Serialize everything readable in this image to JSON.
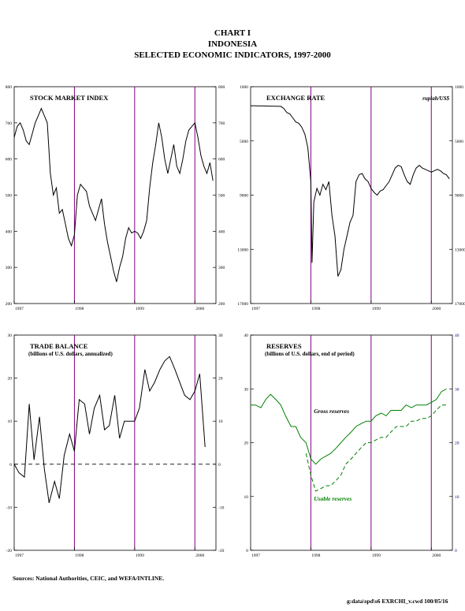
{
  "header": {
    "line1": "CHART I",
    "line2": "INDONESIA",
    "line3": "SELECTED ECONOMIC INDICATORS, 1997-2000"
  },
  "footer": {
    "sources": "Sources: National Authorities, CEIC, and WEFA/INTLINE.",
    "file_ref": "g:data\\spd\\s6 EXRCHI_v.cwd 100/05/16"
  },
  "colors": {
    "axes": "#000000",
    "year_lines": "#800080",
    "reserves": "#008000",
    "right_axis_reserves": "#000080"
  },
  "chart_data": [
    {
      "id": "stock",
      "type": "line",
      "title": "STOCK MARKET INDEX",
      "subtitle": "",
      "unit_label": "",
      "x_tick_labels": [
        "1997",
        "1998",
        "1999",
        "2000"
      ],
      "xlim": [
        1997.0,
        2000.35
      ],
      "ylim": [
        200,
        800
      ],
      "y_ticks": [
        200,
        300,
        400,
        500,
        600,
        700,
        800
      ],
      "y_reversed": false,
      "year_lines": [
        1998,
        1999,
        2000
      ],
      "series": [
        {
          "name": "",
          "style": "solid",
          "color": "#000000",
          "points": [
            [
              1997.0,
              660
            ],
            [
              1997.05,
              690
            ],
            [
              1997.1,
              700
            ],
            [
              1997.15,
              680
            ],
            [
              1997.2,
              650
            ],
            [
              1997.25,
              640
            ],
            [
              1997.3,
              670
            ],
            [
              1997.35,
              700
            ],
            [
              1997.4,
              720
            ],
            [
              1997.45,
              740
            ],
            [
              1997.5,
              720
            ],
            [
              1997.55,
              700
            ],
            [
              1997.6,
              560
            ],
            [
              1997.65,
              500
            ],
            [
              1997.7,
              520
            ],
            [
              1997.75,
              450
            ],
            [
              1997.8,
              460
            ],
            [
              1997.85,
              420
            ],
            [
              1997.9,
              380
            ],
            [
              1997.95,
              360
            ],
            [
              1998.0,
              390
            ],
            [
              1998.05,
              500
            ],
            [
              1998.1,
              530
            ],
            [
              1998.15,
              520
            ],
            [
              1998.2,
              510
            ],
            [
              1998.25,
              470
            ],
            [
              1998.3,
              450
            ],
            [
              1998.35,
              430
            ],
            [
              1998.4,
              460
            ],
            [
              1998.45,
              490
            ],
            [
              1998.5,
              420
            ],
            [
              1998.55,
              370
            ],
            [
              1998.6,
              330
            ],
            [
              1998.65,
              290
            ],
            [
              1998.7,
              260
            ],
            [
              1998.75,
              300
            ],
            [
              1998.8,
              330
            ],
            [
              1998.85,
              380
            ],
            [
              1998.9,
              410
            ],
            [
              1998.95,
              395
            ],
            [
              1999.0,
              400
            ],
            [
              1999.05,
              395
            ],
            [
              1999.1,
              380
            ],
            [
              1999.15,
              400
            ],
            [
              1999.2,
              430
            ],
            [
              1999.25,
              520
            ],
            [
              1999.3,
              590
            ],
            [
              1999.35,
              640
            ],
            [
              1999.4,
              700
            ],
            [
              1999.45,
              660
            ],
            [
              1999.5,
              600
            ],
            [
              1999.55,
              560
            ],
            [
              1999.6,
              600
            ],
            [
              1999.65,
              640
            ],
            [
              1999.7,
              580
            ],
            [
              1999.75,
              560
            ],
            [
              1999.8,
              600
            ],
            [
              1999.85,
              650
            ],
            [
              1999.9,
              680
            ],
            [
              1999.95,
              690
            ],
            [
              2000.0,
              700
            ],
            [
              2000.05,
              660
            ],
            [
              2000.1,
              610
            ],
            [
              2000.15,
              580
            ],
            [
              2000.2,
              560
            ],
            [
              2000.25,
              590
            ],
            [
              2000.3,
              540
            ]
          ]
        }
      ]
    },
    {
      "id": "exchange",
      "type": "line",
      "title": "EXCHANGE RATE",
      "subtitle": "",
      "unit_label": "rupiah/US$",
      "x_tick_labels": [
        "1997",
        "1998",
        "1999",
        "2000"
      ],
      "xlim": [
        1997.0,
        2000.35
      ],
      "ylim": [
        17000,
        1000
      ],
      "y_ticks": [
        1000,
        5000,
        9000,
        13000,
        17000
      ],
      "y_reversed": true,
      "year_lines": [
        1998,
        1999,
        2000
      ],
      "series": [
        {
          "name": "",
          "style": "solid",
          "color": "#000000",
          "points": [
            [
              1997.0,
              2400
            ],
            [
              1997.2,
              2420
            ],
            [
              1997.4,
              2440
            ],
            [
              1997.5,
              2450
            ],
            [
              1997.55,
              2600
            ],
            [
              1997.6,
              2900
            ],
            [
              1997.65,
              3000
            ],
            [
              1997.7,
              3300
            ],
            [
              1997.75,
              3600
            ],
            [
              1997.8,
              3700
            ],
            [
              1997.85,
              4000
            ],
            [
              1997.9,
              4500
            ],
            [
              1997.95,
              5500
            ],
            [
              1998.0,
              8000
            ],
            [
              1998.02,
              14000
            ],
            [
              1998.05,
              9500
            ],
            [
              1998.1,
              8500
            ],
            [
              1998.15,
              9000
            ],
            [
              1998.2,
              8200
            ],
            [
              1998.25,
              8600
            ],
            [
              1998.3,
              8000
            ],
            [
              1998.35,
              10500
            ],
            [
              1998.4,
              12000
            ],
            [
              1998.45,
              15000
            ],
            [
              1998.5,
              14500
            ],
            [
              1998.55,
              13000
            ],
            [
              1998.6,
              12000
            ],
            [
              1998.65,
              11000
            ],
            [
              1998.7,
              10500
            ],
            [
              1998.75,
              8000
            ],
            [
              1998.8,
              7500
            ],
            [
              1998.85,
              7400
            ],
            [
              1998.9,
              7800
            ],
            [
              1998.95,
              8000
            ],
            [
              1999.0,
              8500
            ],
            [
              1999.05,
              8800
            ],
            [
              1999.1,
              9000
            ],
            [
              1999.15,
              8700
            ],
            [
              1999.2,
              8600
            ],
            [
              1999.25,
              8300
            ],
            [
              1999.3,
              8000
            ],
            [
              1999.35,
              7500
            ],
            [
              1999.4,
              7000
            ],
            [
              1999.45,
              6800
            ],
            [
              1999.5,
              6900
            ],
            [
              1999.55,
              7500
            ],
            [
              1999.6,
              8000
            ],
            [
              1999.65,
              8200
            ],
            [
              1999.7,
              7500
            ],
            [
              1999.75,
              7000
            ],
            [
              1999.8,
              6800
            ],
            [
              1999.85,
              7000
            ],
            [
              1999.9,
              7100
            ],
            [
              1999.95,
              7200
            ],
            [
              2000.0,
              7300
            ],
            [
              2000.05,
              7200
            ],
            [
              2000.1,
              7100
            ],
            [
              2000.15,
              7200
            ],
            [
              2000.2,
              7400
            ],
            [
              2000.25,
              7500
            ],
            [
              2000.3,
              7800
            ]
          ]
        }
      ]
    },
    {
      "id": "trade",
      "type": "line",
      "title": "TRADE BALANCE",
      "subtitle": "(billions of U.S. dollars, annualized)",
      "unit_label": "",
      "x_tick_labels": [
        "1997",
        "1998",
        "1999",
        "2000"
      ],
      "xlim": [
        1997.0,
        2000.35
      ],
      "ylim": [
        -20,
        30
      ],
      "y_ticks": [
        -20,
        -10,
        0,
        10,
        20,
        30
      ],
      "y_reversed": false,
      "year_lines": [
        1998,
        1999,
        2000
      ],
      "zero_line": true,
      "series": [
        {
          "name": "",
          "style": "solid",
          "color": "#000000",
          "points": [
            [
              1997.0,
              0
            ],
            [
              1997.08,
              -2
            ],
            [
              1997.17,
              -3
            ],
            [
              1997.25,
              14
            ],
            [
              1997.33,
              1
            ],
            [
              1997.42,
              11
            ],
            [
              1997.5,
              -1
            ],
            [
              1997.58,
              -9
            ],
            [
              1997.67,
              -4
            ],
            [
              1997.75,
              -8
            ],
            [
              1997.83,
              2
            ],
            [
              1997.92,
              7
            ],
            [
              1998.0,
              3
            ],
            [
              1998.08,
              15
            ],
            [
              1998.17,
              14
            ],
            [
              1998.25,
              7
            ],
            [
              1998.33,
              13
            ],
            [
              1998.42,
              16
            ],
            [
              1998.5,
              8
            ],
            [
              1998.58,
              9
            ],
            [
              1998.67,
              16
            ],
            [
              1998.75,
              6
            ],
            [
              1998.83,
              10
            ],
            [
              1998.92,
              10
            ],
            [
              1999.0,
              10
            ],
            [
              1999.08,
              13
            ],
            [
              1999.17,
              22
            ],
            [
              1999.25,
              17
            ],
            [
              1999.33,
              19
            ],
            [
              1999.42,
              22
            ],
            [
              1999.5,
              24
            ],
            [
              1999.58,
              25
            ],
            [
              1999.67,
              22
            ],
            [
              1999.75,
              19
            ],
            [
              1999.83,
              16
            ],
            [
              1999.92,
              15
            ],
            [
              2000.0,
              17
            ],
            [
              2000.08,
              21
            ],
            [
              2000.17,
              4
            ]
          ]
        }
      ]
    },
    {
      "id": "reserves",
      "type": "line",
      "title": "RESERVES",
      "subtitle": "(billions of U.S. dollars, end of period)",
      "unit_label": "",
      "x_tick_labels": [
        "1997",
        "1998",
        "1999",
        "2000"
      ],
      "xlim": [
        1997.0,
        2000.35
      ],
      "ylim": [
        0,
        40
      ],
      "y_ticks": [
        0,
        10,
        20,
        30,
        40
      ],
      "y_reversed": false,
      "year_lines": [
        1998,
        1999,
        2000
      ],
      "series": [
        {
          "name": "Gross reserves",
          "style": "solid",
          "color": "#008000",
          "points": [
            [
              1997.0,
              27
            ],
            [
              1997.08,
              27
            ],
            [
              1997.17,
              26.5
            ],
            [
              1997.25,
              28
            ],
            [
              1997.33,
              29
            ],
            [
              1997.42,
              28
            ],
            [
              1997.5,
              27
            ],
            [
              1997.58,
              25
            ],
            [
              1997.67,
              23
            ],
            [
              1997.75,
              23
            ],
            [
              1997.83,
              21
            ],
            [
              1997.92,
              20
            ],
            [
              1998.0,
              17
            ],
            [
              1998.08,
              16
            ],
            [
              1998.17,
              17
            ],
            [
              1998.25,
              17.5
            ],
            [
              1998.33,
              18
            ],
            [
              1998.42,
              19
            ],
            [
              1998.5,
              20
            ],
            [
              1998.58,
              21
            ],
            [
              1998.67,
              22
            ],
            [
              1998.75,
              23
            ],
            [
              1998.83,
              23.5
            ],
            [
              1998.92,
              24
            ],
            [
              1999.0,
              24
            ],
            [
              1999.08,
              25
            ],
            [
              1999.17,
              25.5
            ],
            [
              1999.25,
              25
            ],
            [
              1999.33,
              26
            ],
            [
              1999.42,
              26
            ],
            [
              1999.5,
              26
            ],
            [
              1999.58,
              27
            ],
            [
              1999.67,
              26.5
            ],
            [
              1999.75,
              27
            ],
            [
              1999.83,
              27
            ],
            [
              1999.92,
              27
            ],
            [
              2000.0,
              27.5
            ],
            [
              2000.08,
              28
            ],
            [
              2000.17,
              29.5
            ],
            [
              2000.25,
              30
            ]
          ]
        },
        {
          "name": "Usable reserves",
          "style": "dashed",
          "color": "#008000",
          "points": [
            [
              1997.92,
              18
            ],
            [
              1998.0,
              14
            ],
            [
              1998.08,
              11
            ],
            [
              1998.17,
              11.5
            ],
            [
              1998.25,
              12
            ],
            [
              1998.33,
              12
            ],
            [
              1998.42,
              13
            ],
            [
              1998.5,
              14
            ],
            [
              1998.58,
              16
            ],
            [
              1998.67,
              17
            ],
            [
              1998.75,
              18
            ],
            [
              1998.83,
              19
            ],
            [
              1998.92,
              20
            ],
            [
              1999.0,
              20
            ],
            [
              1999.08,
              20.5
            ],
            [
              1999.17,
              21
            ],
            [
              1999.25,
              21
            ],
            [
              1999.33,
              22
            ],
            [
              1999.42,
              23
            ],
            [
              1999.5,
              23
            ],
            [
              1999.58,
              23
            ],
            [
              1999.67,
              24
            ],
            [
              1999.75,
              24
            ],
            [
              1999.83,
              24.5
            ],
            [
              1999.92,
              24.5
            ],
            [
              2000.0,
              25
            ],
            [
              2000.08,
              26
            ],
            [
              2000.17,
              27
            ],
            [
              2000.25,
              27
            ]
          ]
        }
      ],
      "series_labels": [
        "Gross reserves",
        "Usable reserves"
      ]
    }
  ]
}
